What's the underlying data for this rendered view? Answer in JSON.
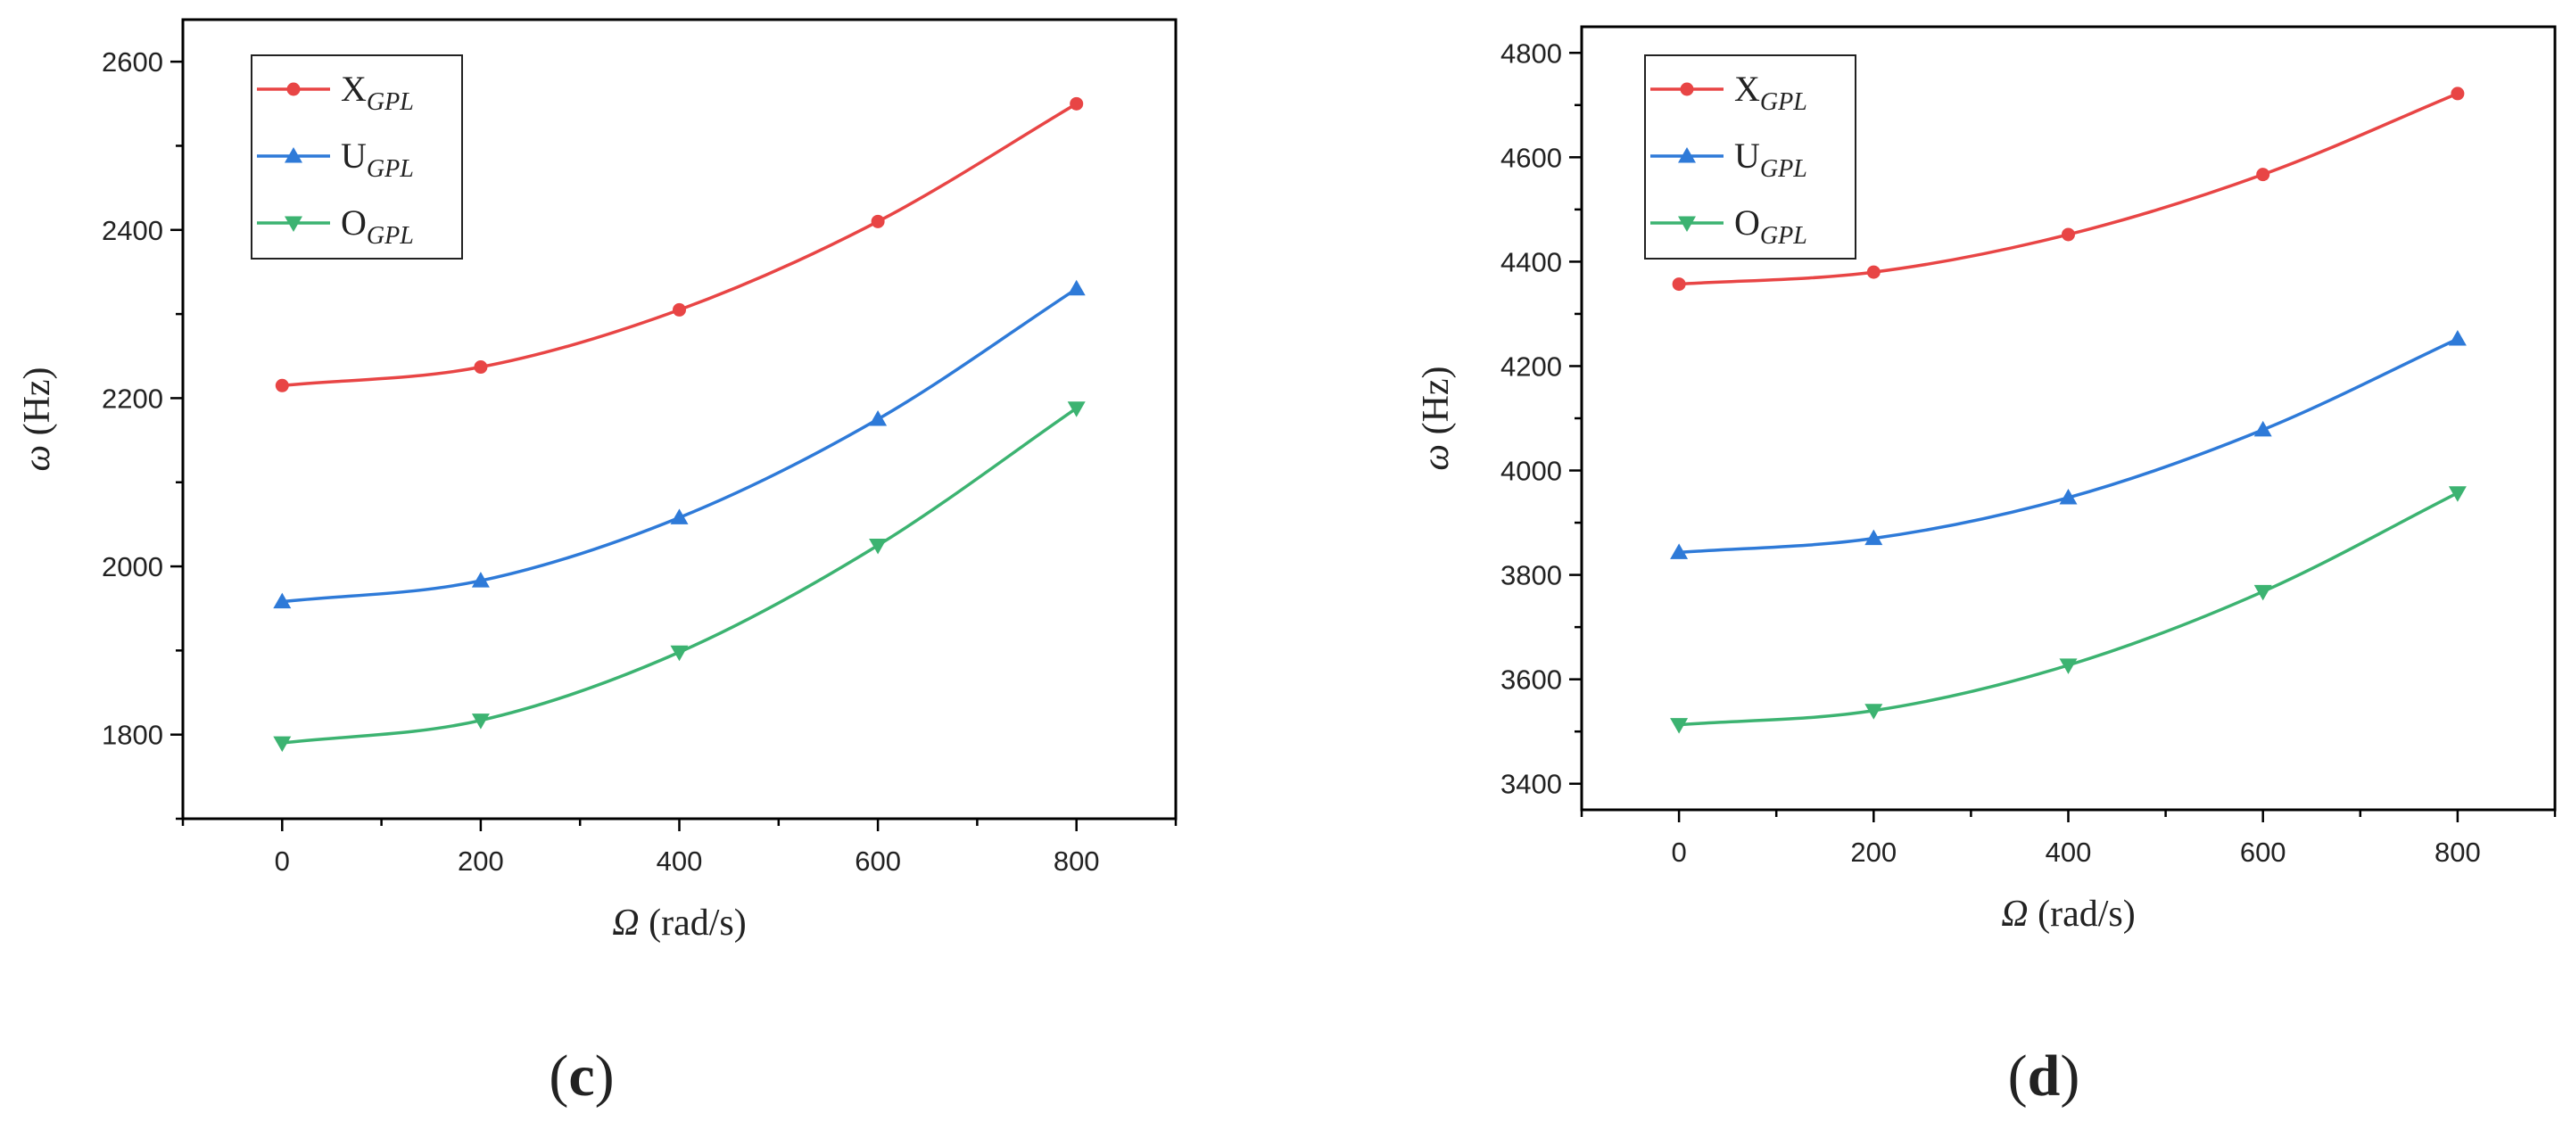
{
  "chart_data": [
    {
      "type": "line",
      "panel_label": "c",
      "xlabel_symbol": "Ω",
      "xlabel_unit": "(rad/s)",
      "ylabel_symbol": "ω",
      "ylabel_unit": "(Hz)",
      "x": [
        0,
        200,
        400,
        600,
        800
      ],
      "xlim": [
        -100,
        900
      ],
      "xticks": [
        0,
        200,
        400,
        600,
        800
      ],
      "ylim": [
        1700,
        2650
      ],
      "yticks": [
        1800,
        2000,
        2200,
        2400,
        2600
      ],
      "legend_position": "top-left",
      "series": [
        {
          "name": "X",
          "subscript": "GPL",
          "color": "#e84545",
          "marker": "circle",
          "values": [
            2215,
            2237,
            2305,
            2410,
            2550
          ]
        },
        {
          "name": "U",
          "subscript": "GPL",
          "color": "#2e7ad8",
          "marker": "triangle-up",
          "values": [
            1958,
            1983,
            2058,
            2175,
            2330
          ]
        },
        {
          "name": "O",
          "subscript": "GPL",
          "color": "#3cb371",
          "marker": "triangle-down",
          "values": [
            1790,
            1817,
            1898,
            2025,
            2188
          ]
        }
      ]
    },
    {
      "type": "line",
      "panel_label": "d",
      "xlabel_symbol": "Ω",
      "xlabel_unit": "(rad/s)",
      "ylabel_symbol": "ω",
      "ylabel_unit": "(Hz)",
      "x": [
        0,
        200,
        400,
        600,
        800
      ],
      "xlim": [
        -100,
        900
      ],
      "xticks": [
        0,
        200,
        400,
        600,
        800
      ],
      "ylim": [
        3350,
        4850
      ],
      "yticks": [
        3400,
        3600,
        3800,
        4000,
        4200,
        4400,
        4600,
        4800
      ],
      "legend_position": "top-left",
      "series": [
        {
          "name": "X",
          "subscript": "GPL",
          "color": "#e84545",
          "marker": "circle",
          "values": [
            4357,
            4380,
            4452,
            4567,
            4722
          ]
        },
        {
          "name": "U",
          "subscript": "GPL",
          "color": "#2e7ad8",
          "marker": "triangle-up",
          "values": [
            3843,
            3870,
            3948,
            4078,
            4252
          ]
        },
        {
          "name": "O",
          "subscript": "GPL",
          "color": "#3cb371",
          "marker": "triangle-down",
          "values": [
            3513,
            3540,
            3627,
            3768,
            3957
          ]
        }
      ]
    }
  ]
}
